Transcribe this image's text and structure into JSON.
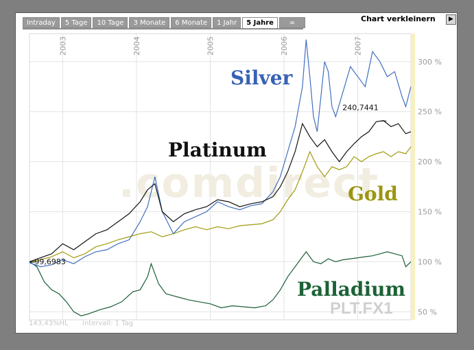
{
  "tabs": [
    {
      "label": "Intraday",
      "width": 0
    },
    {
      "label": "5 Tage"
    },
    {
      "label": "10 Tage"
    },
    {
      "label": "3 Monate"
    },
    {
      "label": "6 Monate"
    },
    {
      "label": "1 Jahr"
    },
    {
      "label": "5 Jahre",
      "active": true
    },
    {
      "label": "∞"
    }
  ],
  "shrink": {
    "label": "Chart verkleinern",
    "icon": "play-arrow-icon"
  },
  "footer": {
    "hl": "143,43%HL",
    "interval": "Intervall: 1 Tag"
  },
  "chart_data": {
    "type": "line",
    "y_unit": "%",
    "yticks": [
      50,
      100,
      150,
      200,
      250,
      300
    ],
    "ytick_labels": [
      "50 %",
      "100 %",
      "150 %",
      "200 %",
      "250 %",
      "300 %"
    ],
    "ylim": [
      42,
      328
    ],
    "xlim": [
      2002.55,
      2007.72
    ],
    "xticks": [
      2003,
      2004,
      2005,
      2006,
      2007
    ],
    "xtick_labels": [
      "2003",
      "2004",
      "2005",
      "2006",
      "2007"
    ],
    "grid": true,
    "watermark": "comdirect",
    "symbol": "PLT.FX1",
    "annotations": [
      {
        "text": "99,6983",
        "x": 2002.6,
        "y": 99.7
      },
      {
        "text": "240,7441",
        "x": 2007.35,
        "y": 240.7
      }
    ],
    "series": [
      {
        "name": "Silver",
        "color": "#3f6fc0",
        "label_color": "#3762b5",
        "x": [
          2002.55,
          2002.7,
          2002.85,
          2003.0,
          2003.15,
          2003.3,
          2003.45,
          2003.6,
          2003.75,
          2003.9,
          2004.05,
          2004.15,
          2004.25,
          2004.35,
          2004.5,
          2004.65,
          2004.8,
          2004.95,
          2005.1,
          2005.25,
          2005.4,
          2005.55,
          2005.7,
          2005.85,
          2005.95,
          2006.05,
          2006.15,
          2006.25,
          2006.3,
          2006.35,
          2006.4,
          2006.45,
          2006.5,
          2006.55,
          2006.6,
          2006.65,
          2006.7,
          2006.8,
          2006.9,
          2007.0,
          2007.1,
          2007.2,
          2007.3,
          2007.4,
          2007.5,
          2007.6,
          2007.65,
          2007.72
        ],
        "y": [
          99,
          95,
          97,
          102,
          98,
          105,
          110,
          112,
          118,
          122,
          140,
          155,
          185,
          150,
          128,
          140,
          145,
          150,
          160,
          155,
          152,
          156,
          158,
          170,
          185,
          210,
          235,
          275,
          322,
          285,
          245,
          230,
          265,
          300,
          290,
          255,
          245,
          270,
          295,
          285,
          275,
          310,
          300,
          285,
          290,
          265,
          255,
          275
        ]
      },
      {
        "name": "Platinum",
        "color": "#111111",
        "label_color": "#111111",
        "x": [
          2002.55,
          2002.7,
          2002.85,
          2003.0,
          2003.15,
          2003.3,
          2003.45,
          2003.6,
          2003.75,
          2003.9,
          2004.05,
          2004.15,
          2004.25,
          2004.35,
          2004.5,
          2004.65,
          2004.8,
          2004.95,
          2005.1,
          2005.25,
          2005.4,
          2005.55,
          2005.7,
          2005.85,
          2005.95,
          2006.05,
          2006.15,
          2006.25,
          2006.35,
          2006.45,
          2006.55,
          2006.65,
          2006.75,
          2006.85,
          2006.95,
          2007.05,
          2007.15,
          2007.25,
          2007.35,
          2007.45,
          2007.55,
          2007.65,
          2007.72
        ],
        "y": [
          100,
          104,
          108,
          118,
          112,
          120,
          128,
          132,
          140,
          148,
          160,
          172,
          178,
          150,
          140,
          148,
          152,
          155,
          162,
          160,
          155,
          158,
          160,
          165,
          175,
          190,
          210,
          238,
          225,
          215,
          222,
          210,
          200,
          210,
          218,
          225,
          230,
          240,
          241,
          235,
          238,
          228,
          230
        ]
      },
      {
        "name": "Gold",
        "color": "#a09a0c",
        "label_color": "#9a9612",
        "x": [
          2002.55,
          2002.7,
          2002.85,
          2003.0,
          2003.15,
          2003.3,
          2003.45,
          2003.6,
          2003.75,
          2003.9,
          2004.05,
          2004.2,
          2004.35,
          2004.5,
          2004.65,
          2004.8,
          2004.95,
          2005.1,
          2005.25,
          2005.4,
          2005.55,
          2005.7,
          2005.85,
          2005.95,
          2006.05,
          2006.15,
          2006.25,
          2006.35,
          2006.45,
          2006.55,
          2006.65,
          2006.75,
          2006.85,
          2006.95,
          2007.05,
          2007.15,
          2007.25,
          2007.35,
          2007.45,
          2007.55,
          2007.65,
          2007.72
        ],
        "y": [
          100,
          102,
          105,
          110,
          104,
          108,
          115,
          118,
          122,
          125,
          128,
          130,
          125,
          128,
          132,
          135,
          132,
          135,
          133,
          136,
          137,
          138,
          142,
          150,
          162,
          172,
          190,
          210,
          195,
          185,
          195,
          192,
          195,
          205,
          200,
          205,
          208,
          210,
          205,
          210,
          208,
          215
        ]
      },
      {
        "name": "Palladium",
        "color": "#1a5e35",
        "label_color": "#1c6236",
        "x": [
          2002.55,
          2002.65,
          2002.75,
          2002.85,
          2002.95,
          2003.05,
          2003.15,
          2003.25,
          2003.35,
          2003.5,
          2003.65,
          2003.8,
          2003.95,
          2004.05,
          2004.15,
          2004.2,
          2004.3,
          2004.4,
          2004.55,
          2004.7,
          2004.85,
          2005.0,
          2005.15,
          2005.3,
          2005.45,
          2005.6,
          2005.75,
          2005.85,
          2005.95,
          2006.05,
          2006.15,
          2006.25,
          2006.3,
          2006.4,
          2006.5,
          2006.6,
          2006.7,
          2006.8,
          2006.9,
          2007.0,
          2007.1,
          2007.2,
          2007.3,
          2007.4,
          2007.5,
          2007.6,
          2007.65,
          2007.72
        ],
        "y": [
          100,
          95,
          80,
          72,
          68,
          60,
          50,
          46,
          48,
          52,
          55,
          60,
          70,
          72,
          85,
          98,
          78,
          68,
          65,
          62,
          60,
          58,
          54,
          56,
          55,
          54,
          56,
          62,
          72,
          85,
          95,
          105,
          110,
          100,
          98,
          103,
          100,
          102,
          103,
          104,
          105,
          106,
          108,
          110,
          108,
          106,
          95,
          100
        ]
      }
    ]
  }
}
